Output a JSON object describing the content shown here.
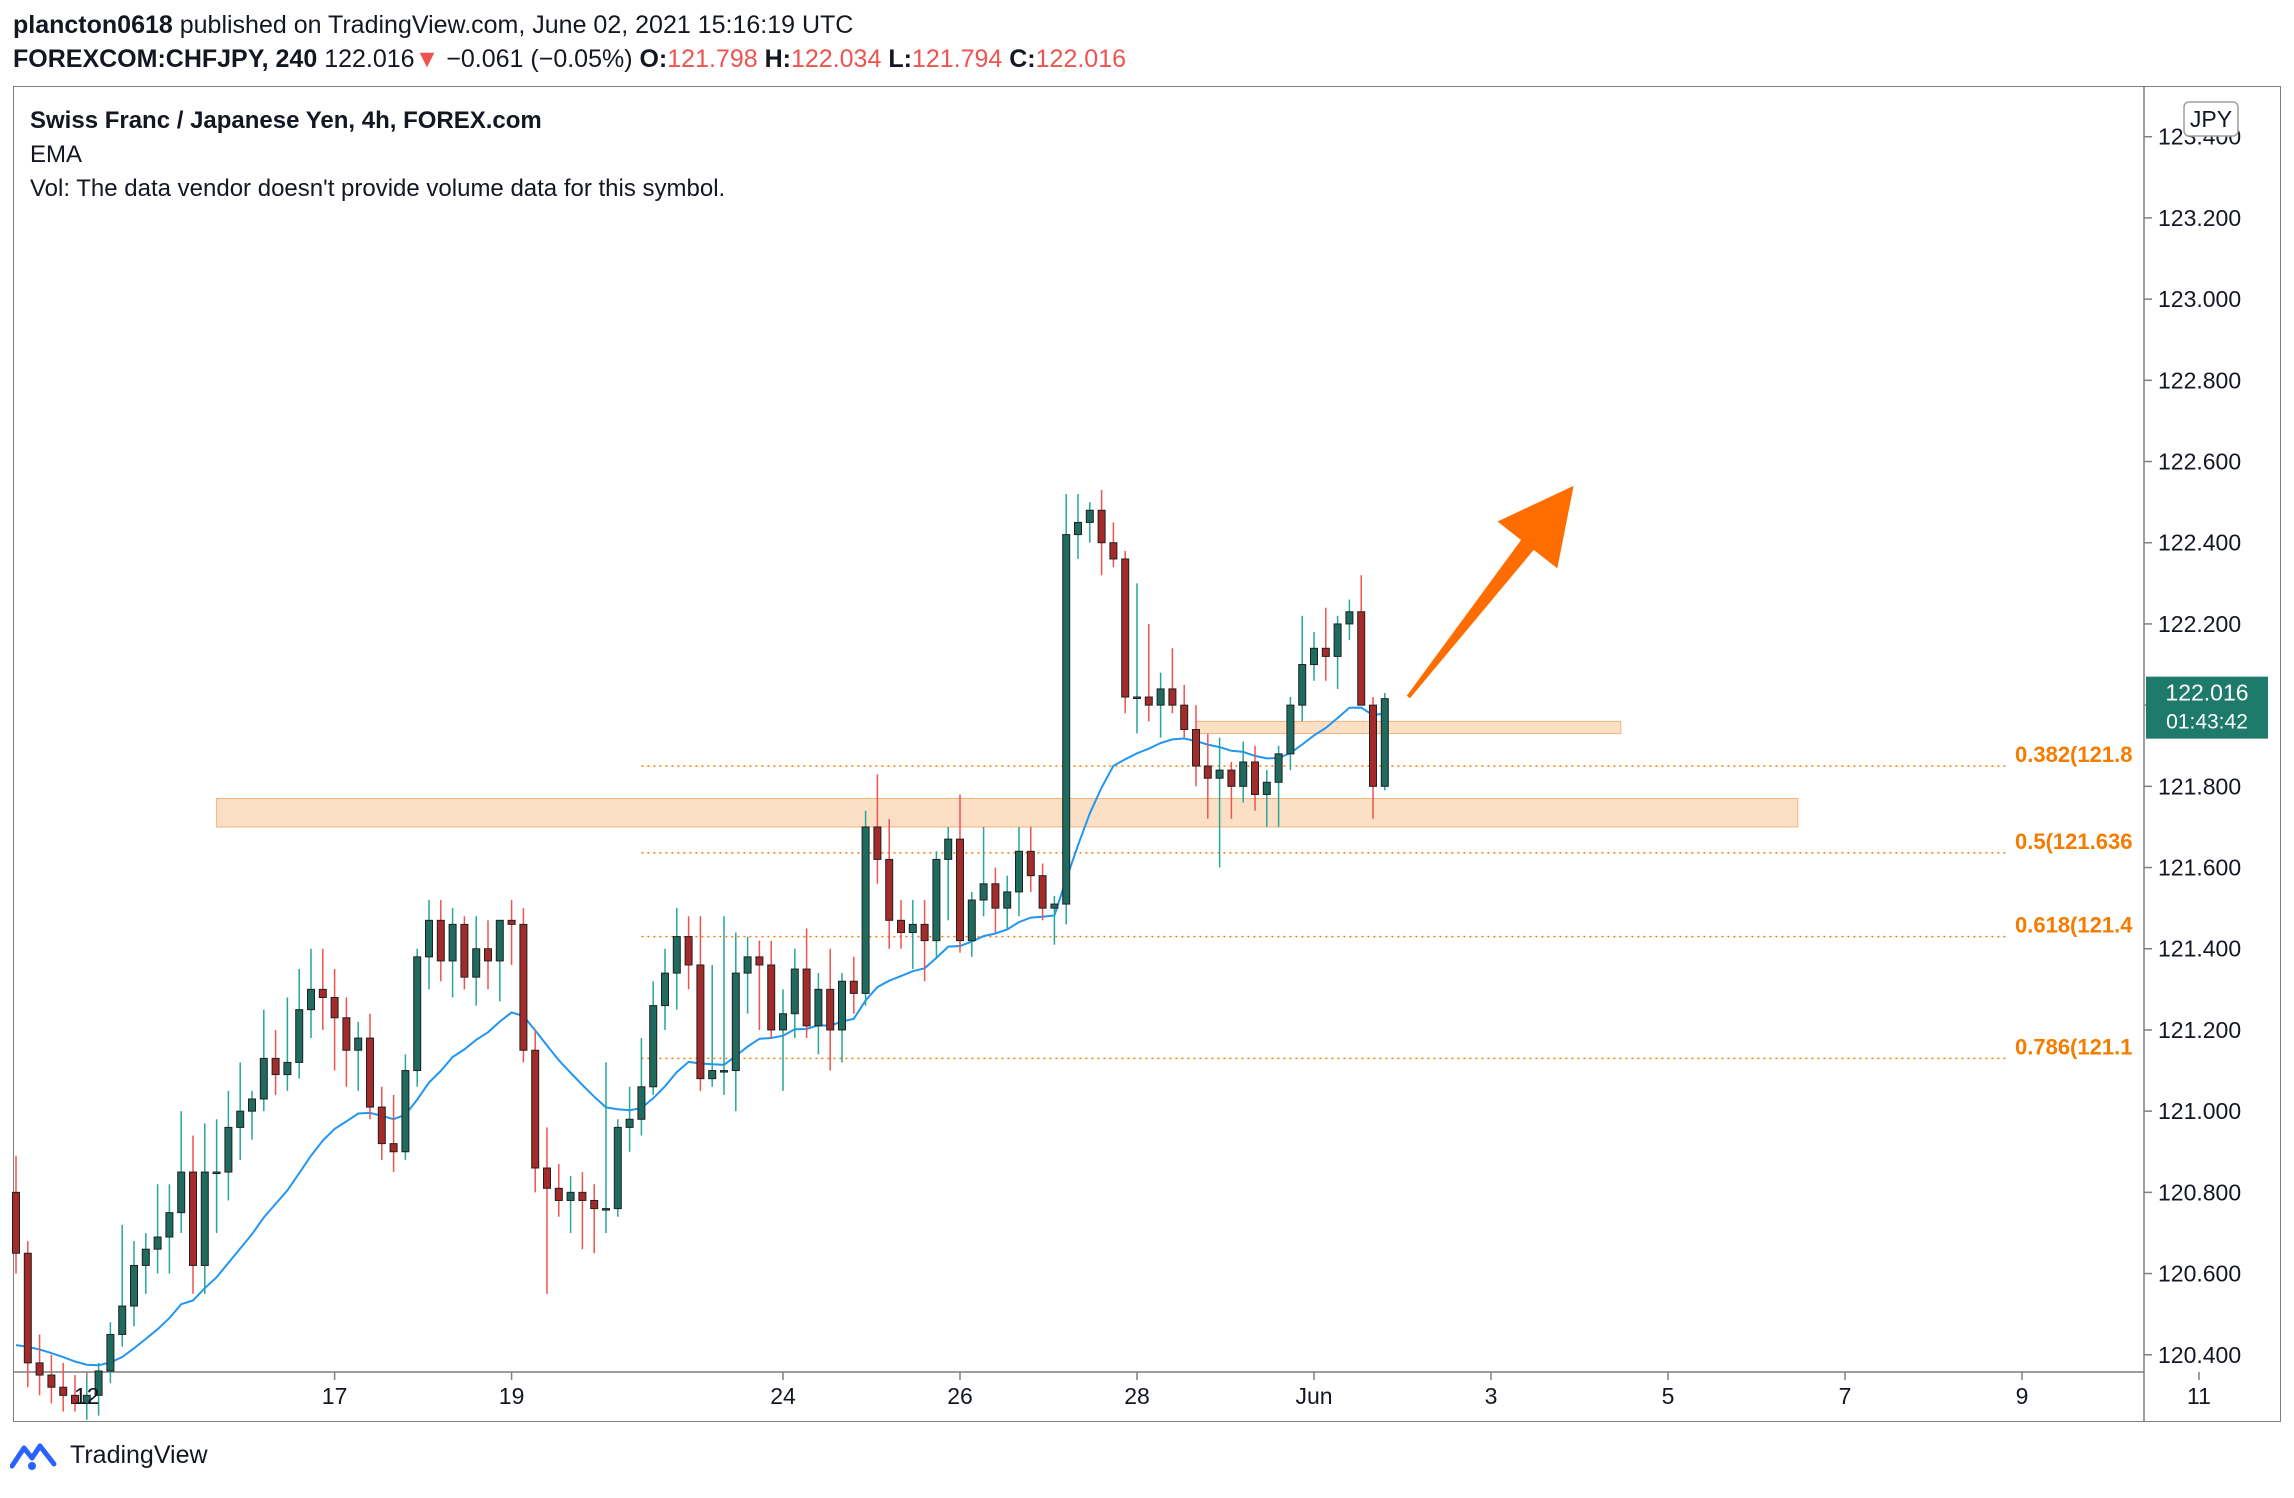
{
  "header": {
    "author": "plancton0618",
    "published": "published on TradingView.com, June 02, 2021 15:16:19 UTC",
    "symbol": "FOREXCOM:CHFJPY, 240",
    "last": "122.016",
    "arrow": "▼",
    "change": "−0.061 (−0.05%)",
    "o_label": "O:",
    "o_value": "121.798",
    "h_label": "H:",
    "h_value": "122.034",
    "l_label": "L:",
    "l_value": "121.794",
    "c_label": "C:",
    "c_value": "122.016"
  },
  "legend": {
    "title": "Swiss Franc / Japanese Yen, 4h, FOREX.com",
    "indicator": "EMA",
    "volume_note": "Vol: The data vendor doesn't provide volume data for this symbol."
  },
  "footer": {
    "brand": "TradingView"
  },
  "colors": {
    "up": "#26a69a",
    "down": "#ef5350",
    "up_fill": "#1e6b5f",
    "down_fill": "#a52a2a",
    "ema": "#2196f3",
    "zone": "#fad8b8",
    "fib": "#f57c00",
    "arrow": "#ff6d00",
    "price_tag": "#1e7a6b"
  },
  "chart_data": {
    "type": "candlestick",
    "currency_label": "JPY",
    "y_ticks": [
      "123.400",
      "123.200",
      "123.000",
      "122.800",
      "122.600",
      "122.400",
      "122.200",
      "122.000",
      "121.800",
      "121.600",
      "121.400",
      "121.200",
      "121.000",
      "120.800",
      "120.600",
      "120.400"
    ],
    "ylim": [
      120.36,
      123.52
    ],
    "x_ticks": [
      "12",
      "17",
      "19",
      "24",
      "26",
      "28",
      "Jun",
      "3",
      "5",
      "7",
      "9",
      "11"
    ],
    "x_tick_index": [
      6,
      27,
      42,
      65,
      80,
      95,
      110,
      125,
      140,
      155,
      170,
      185
    ],
    "current_price": "122.016",
    "countdown": "01:43:42",
    "fib_levels": [
      {
        "label": "0.382(121.8",
        "value": 121.85
      },
      {
        "label": "0.5(121.636",
        "value": 121.636
      },
      {
        "label": "0.618(121.4",
        "value": 121.43
      },
      {
        "label": "0.786(121.1",
        "value": 121.13
      }
    ],
    "fib_start_index": 53,
    "zones": [
      {
        "from_index": 17,
        "to_index": 151,
        "low": 121.7,
        "high": 121.77
      },
      {
        "from_index": 100,
        "to_index": 136,
        "low": 121.93,
        "high": 121.96
      }
    ],
    "projection_arrow": {
      "from_index": 118,
      "from_value": 122.02,
      "to_index": 132,
      "to_value": 122.54
    },
    "candles": [
      [
        120.8,
        120.89,
        120.6,
        120.65
      ],
      [
        120.65,
        120.68,
        120.32,
        120.38
      ],
      [
        120.38,
        120.45,
        120.3,
        120.35
      ],
      [
        120.35,
        120.4,
        120.28,
        120.32
      ],
      [
        120.32,
        120.38,
        120.26,
        120.3
      ],
      [
        120.3,
        120.35,
        120.26,
        120.28
      ],
      [
        120.28,
        120.34,
        120.24,
        120.3
      ],
      [
        120.3,
        120.38,
        120.25,
        120.36
      ],
      [
        120.36,
        120.48,
        120.33,
        120.45
      ],
      [
        120.45,
        120.72,
        120.42,
        120.52
      ],
      [
        120.52,
        120.68,
        120.47,
        120.62
      ],
      [
        120.62,
        120.7,
        120.55,
        120.66
      ],
      [
        120.66,
        120.82,
        120.6,
        120.69
      ],
      [
        120.69,
        120.82,
        120.6,
        120.75
      ],
      [
        120.75,
        121.0,
        120.7,
        120.85
      ],
      [
        120.85,
        120.94,
        120.55,
        120.62
      ],
      [
        120.62,
        120.97,
        120.55,
        120.85
      ],
      [
        120.85,
        120.98,
        120.7,
        120.85
      ],
      [
        120.85,
        121.05,
        120.78,
        120.96
      ],
      [
        120.96,
        121.12,
        120.88,
        121.0
      ],
      [
        121.0,
        121.05,
        120.93,
        121.03
      ],
      [
        121.03,
        121.25,
        121.0,
        121.13
      ],
      [
        121.13,
        121.2,
        121.04,
        121.09
      ],
      [
        121.09,
        121.28,
        121.05,
        121.12
      ],
      [
        121.12,
        121.35,
        121.08,
        121.25
      ],
      [
        121.25,
        121.4,
        121.18,
        121.3
      ],
      [
        121.3,
        121.4,
        121.2,
        121.28
      ],
      [
        121.28,
        121.35,
        121.1,
        121.23
      ],
      [
        121.23,
        121.28,
        121.06,
        121.15
      ],
      [
        121.15,
        121.22,
        121.05,
        121.18
      ],
      [
        121.18,
        121.24,
        120.98,
        121.01
      ],
      [
        121.01,
        121.06,
        120.88,
        120.92
      ],
      [
        120.92,
        121.04,
        120.85,
        120.9
      ],
      [
        120.9,
        121.14,
        120.88,
        121.1
      ],
      [
        121.1,
        121.4,
        121.06,
        121.38
      ],
      [
        121.38,
        121.52,
        121.3,
        121.47
      ],
      [
        121.47,
        121.52,
        121.32,
        121.37
      ],
      [
        121.37,
        121.5,
        121.28,
        121.46
      ],
      [
        121.46,
        121.48,
        121.3,
        121.33
      ],
      [
        121.33,
        121.48,
        121.26,
        121.4
      ],
      [
        121.4,
        121.47,
        121.3,
        121.37
      ],
      [
        121.37,
        121.45,
        121.27,
        121.47
      ],
      [
        121.47,
        121.52,
        121.36,
        121.46
      ],
      [
        121.46,
        121.5,
        121.12,
        121.15
      ],
      [
        121.15,
        121.2,
        120.8,
        120.86
      ],
      [
        120.86,
        120.96,
        120.55,
        120.81
      ],
      [
        120.81,
        120.87,
        120.74,
        120.78
      ],
      [
        120.78,
        120.84,
        120.7,
        120.8
      ],
      [
        120.8,
        120.85,
        120.66,
        120.78
      ],
      [
        120.78,
        120.82,
        120.65,
        120.76
      ],
      [
        120.76,
        121.12,
        120.7,
        120.76
      ],
      [
        120.76,
        120.98,
        120.74,
        120.96
      ],
      [
        120.96,
        121.06,
        120.9,
        120.98
      ],
      [
        120.98,
        121.18,
        120.94,
        121.06
      ],
      [
        121.06,
        121.32,
        121.04,
        121.26
      ],
      [
        121.26,
        121.4,
        121.2,
        121.34
      ],
      [
        121.34,
        121.5,
        121.25,
        121.43
      ],
      [
        121.43,
        121.48,
        121.3,
        121.36
      ],
      [
        121.36,
        121.48,
        121.05,
        121.08
      ],
      [
        121.08,
        121.36,
        121.06,
        121.1
      ],
      [
        121.1,
        121.48,
        121.04,
        121.1
      ],
      [
        121.1,
        121.44,
        121.0,
        121.34
      ],
      [
        121.34,
        121.43,
        121.24,
        121.38
      ],
      [
        121.38,
        121.42,
        121.2,
        121.36
      ],
      [
        121.36,
        121.42,
        121.18,
        121.2
      ],
      [
        121.2,
        121.3,
        121.05,
        121.24
      ],
      [
        121.24,
        121.4,
        121.18,
        121.35
      ],
      [
        121.35,
        121.45,
        121.18,
        121.21
      ],
      [
        121.21,
        121.34,
        121.14,
        121.3
      ],
      [
        121.3,
        121.4,
        121.1,
        121.2
      ],
      [
        121.2,
        121.34,
        121.12,
        121.32
      ],
      [
        121.32,
        121.38,
        121.24,
        121.29
      ],
      [
        121.29,
        121.74,
        121.26,
        121.7
      ],
      [
        121.7,
        121.83,
        121.56,
        121.62
      ],
      [
        121.62,
        121.72,
        121.4,
        121.47
      ],
      [
        121.47,
        121.52,
        121.4,
        121.44
      ],
      [
        121.44,
        121.52,
        121.35,
        121.46
      ],
      [
        121.46,
        121.52,
        121.32,
        121.42
      ],
      [
        121.42,
        121.64,
        121.38,
        121.62
      ],
      [
        121.62,
        121.7,
        121.47,
        121.67
      ],
      [
        121.67,
        121.78,
        121.39,
        121.42
      ],
      [
        121.42,
        121.54,
        121.38,
        121.52
      ],
      [
        121.52,
        121.7,
        121.48,
        121.56
      ],
      [
        121.56,
        121.6,
        121.44,
        121.5
      ],
      [
        121.5,
        121.58,
        121.45,
        121.54
      ],
      [
        121.54,
        121.7,
        121.48,
        121.64
      ],
      [
        121.64,
        121.7,
        121.54,
        121.58
      ],
      [
        121.58,
        121.61,
        121.47,
        121.5
      ],
      [
        121.5,
        121.53,
        121.41,
        121.51
      ],
      [
        121.51,
        122.52,
        121.46,
        122.42
      ],
      [
        122.42,
        122.52,
        122.36,
        122.45
      ],
      [
        122.45,
        122.5,
        122.4,
        122.48
      ],
      [
        122.48,
        122.53,
        122.32,
        122.4
      ],
      [
        122.4,
        122.45,
        122.34,
        122.36
      ],
      [
        122.36,
        122.38,
        121.98,
        122.02
      ],
      [
        122.02,
        122.3,
        121.93,
        122.02
      ],
      [
        122.02,
        122.2,
        121.96,
        122.0
      ],
      [
        122.0,
        122.08,
        121.92,
        122.04
      ],
      [
        122.04,
        122.14,
        121.98,
        122.0
      ],
      [
        122.0,
        122.05,
        121.92,
        121.94
      ],
      [
        121.94,
        122.0,
        121.8,
        121.85
      ],
      [
        121.85,
        121.93,
        121.72,
        121.82
      ],
      [
        121.82,
        121.92,
        121.6,
        121.84
      ],
      [
        121.84,
        121.86,
        121.72,
        121.8
      ],
      [
        121.8,
        121.91,
        121.76,
        121.86
      ],
      [
        121.86,
        121.9,
        121.74,
        121.78
      ],
      [
        121.78,
        121.84,
        121.7,
        121.81
      ],
      [
        121.81,
        121.9,
        121.7,
        121.88
      ],
      [
        121.88,
        122.02,
        121.84,
        122.0
      ],
      [
        122.0,
        122.22,
        121.96,
        122.1
      ],
      [
        122.1,
        122.18,
        122.06,
        122.14
      ],
      [
        122.14,
        122.24,
        122.06,
        122.12
      ],
      [
        122.12,
        122.22,
        122.04,
        122.2
      ],
      [
        122.2,
        122.26,
        122.16,
        122.23
      ],
      [
        122.23,
        122.32,
        122.0,
        122.0
      ],
      [
        122.0,
        122.02,
        121.72,
        121.8
      ],
      [
        121.8,
        122.03,
        121.79,
        122.016
      ]
    ]
  }
}
